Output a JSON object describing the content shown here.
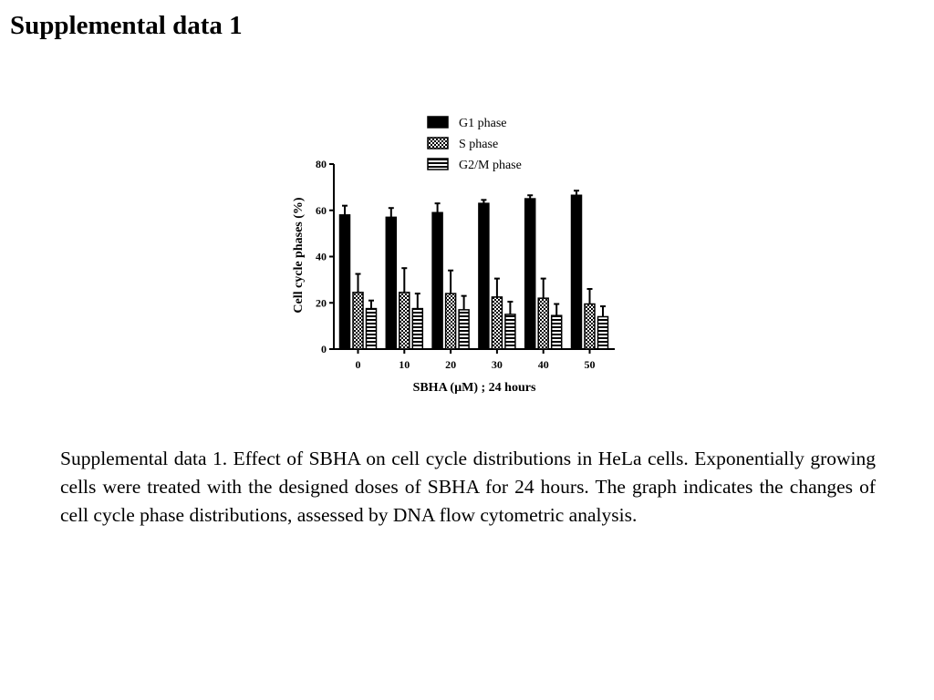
{
  "page": {
    "title": "Supplemental data 1",
    "caption": "Supplemental data 1. Effect of SBHA on cell cycle distributions in HeLa cells. Exponentially growing cells were treated with the designed doses of SBHA for 24 hours. The graph indicates the changes of cell cycle phase distributions, assessed by DNA flow cytometric analysis."
  },
  "chart_data": {
    "type": "bar",
    "title": "",
    "xlabel": "SBHA (µM) ; 24 hours",
    "ylabel": "Cell cycle phases (%)",
    "categories": [
      "0",
      "10",
      "20",
      "30",
      "40",
      "50"
    ],
    "ylim": [
      0,
      80
    ],
    "yticks": [
      0,
      20,
      40,
      60,
      80
    ],
    "grid": false,
    "legend_position": "top",
    "series": [
      {
        "name": "G1 phase",
        "pattern": "solid",
        "values": [
          58,
          57,
          59,
          63,
          65,
          66.5
        ],
        "errors": [
          4,
          4,
          4,
          1.5,
          1.5,
          2
        ]
      },
      {
        "name": "S phase",
        "pattern": "checker",
        "values": [
          24.5,
          24.5,
          24,
          22.5,
          22,
          19.5
        ],
        "errors": [
          8,
          10.5,
          10,
          8,
          8.5,
          6.5
        ]
      },
      {
        "name": "G2/M phase",
        "pattern": "horizontal-stripes",
        "values": [
          17.5,
          17.5,
          17,
          15,
          14.5,
          14
        ],
        "errors": [
          3.5,
          6.5,
          6,
          5.5,
          5,
          4.5
        ]
      }
    ]
  }
}
